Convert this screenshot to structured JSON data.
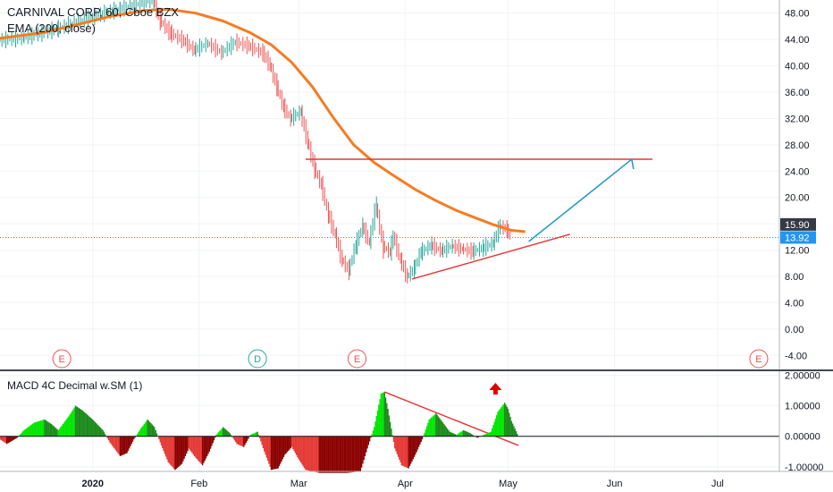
{
  "chart_data": [
    {
      "type": "candlestick",
      "title": "CARNIVAL CORP, 60, Cboe BZX",
      "indicator_label": "EMA (200, close)",
      "ylim": [
        -6,
        50
      ],
      "y_ticks": [
        "48.00",
        "44.00",
        "40.00",
        "36.00",
        "32.00",
        "28.00",
        "24.00",
        "20.00",
        "16.00",
        "12.00",
        "8.00",
        "4.00",
        "0.00",
        "-4.00"
      ],
      "x_labels": [
        "2020",
        "Feb",
        "Mar",
        "Apr",
        "May",
        "Jun",
        "Jul"
      ],
      "x_label_days": [
        0,
        31,
        60,
        91,
        121,
        152,
        182
      ],
      "xlim": [
        -27,
        200
      ],
      "price_labels": [
        {
          "value": 15.9,
          "text": "15.90",
          "color": "#363a45"
        },
        {
          "value": 13.92,
          "text": "13.92",
          "color": "#2196f3"
        }
      ],
      "event_markers": [
        {
          "day": -9,
          "text": "E",
          "color": "#ef5350"
        },
        {
          "day": 48,
          "text": "D",
          "color": "#26a69a"
        },
        {
          "day": 77,
          "text": "E",
          "color": "#ef5350"
        },
        {
          "day": 194,
          "text": "E",
          "color": "#ef5350"
        }
      ],
      "price_series": [
        {
          "day": -27,
          "v": 43.9
        },
        {
          "day": -20,
          "v": 44.2
        },
        {
          "day": -10,
          "v": 45.6
        },
        {
          "day": 0,
          "v": 47.4
        },
        {
          "day": 8,
          "v": 48.6
        },
        {
          "day": 18,
          "v": 50.0
        },
        {
          "day": 20,
          "v": 47.0
        },
        {
          "day": 23,
          "v": 45.0
        },
        {
          "day": 27,
          "v": 43.8
        },
        {
          "day": 30,
          "v": 42.4
        },
        {
          "day": 34,
          "v": 43.4
        },
        {
          "day": 38,
          "v": 42.0
        },
        {
          "day": 42,
          "v": 43.6
        },
        {
          "day": 46,
          "v": 43.0
        },
        {
          "day": 50,
          "v": 42.0
        },
        {
          "day": 52,
          "v": 40.2
        },
        {
          "day": 54,
          "v": 37.0
        },
        {
          "day": 56,
          "v": 33.8
        },
        {
          "day": 58,
          "v": 32.0
        },
        {
          "day": 61,
          "v": 33.0
        },
        {
          "day": 63,
          "v": 28.6
        },
        {
          "day": 65,
          "v": 24.5
        },
        {
          "day": 67,
          "v": 22.0
        },
        {
          "day": 69,
          "v": 17.5
        },
        {
          "day": 71,
          "v": 14.4
        },
        {
          "day": 73,
          "v": 10.6
        },
        {
          "day": 75,
          "v": 8.9
        },
        {
          "day": 77,
          "v": 12.6
        },
        {
          "day": 79,
          "v": 15.6
        },
        {
          "day": 81,
          "v": 13.2
        },
        {
          "day": 83,
          "v": 18.8
        },
        {
          "day": 85,
          "v": 12.6
        },
        {
          "day": 87,
          "v": 11.7
        },
        {
          "day": 88,
          "v": 14.2
        },
        {
          "day": 90,
          "v": 10.6
        },
        {
          "day": 92,
          "v": 8.0
        },
        {
          "day": 94,
          "v": 9.1
        },
        {
          "day": 96,
          "v": 11.7
        },
        {
          "day": 99,
          "v": 12.7
        },
        {
          "day": 102,
          "v": 11.9
        },
        {
          "day": 105,
          "v": 12.6
        },
        {
          "day": 108,
          "v": 12.2
        },
        {
          "day": 111,
          "v": 11.8
        },
        {
          "day": 114,
          "v": 12.3
        },
        {
          "day": 117,
          "v": 13.0
        },
        {
          "day": 119,
          "v": 15.6
        },
        {
          "day": 121,
          "v": 15.2
        },
        {
          "day": 122,
          "v": 13.9
        }
      ],
      "ema_series": [
        {
          "day": -27,
          "v": 44.2
        },
        {
          "day": -15,
          "v": 45.0
        },
        {
          "day": -5,
          "v": 46.2
        },
        {
          "day": 5,
          "v": 47.5
        },
        {
          "day": 15,
          "v": 48.4
        },
        {
          "day": 22,
          "v": 48.6
        },
        {
          "day": 30,
          "v": 48.0
        },
        {
          "day": 38,
          "v": 46.8
        },
        {
          "day": 46,
          "v": 45.0
        },
        {
          "day": 52,
          "v": 43.2
        },
        {
          "day": 58,
          "v": 40.5
        },
        {
          "day": 64,
          "v": 36.8
        },
        {
          "day": 70,
          "v": 32.2
        },
        {
          "day": 76,
          "v": 28.0
        },
        {
          "day": 82,
          "v": 25.3
        },
        {
          "day": 88,
          "v": 23.2
        },
        {
          "day": 94,
          "v": 21.2
        },
        {
          "day": 100,
          "v": 19.5
        },
        {
          "day": 106,
          "v": 18.0
        },
        {
          "day": 112,
          "v": 16.8
        },
        {
          "day": 117,
          "v": 15.8
        },
        {
          "day": 122,
          "v": 15.0
        },
        {
          "day": 126,
          "v": 14.8
        }
      ],
      "resistance_line": {
        "day1": 62,
        "day2": 163,
        "v": 25.8
      },
      "support_line": {
        "day1": 93,
        "v1": 7.6,
        "day2": 139,
        "v2": 14.4
      },
      "projection_line": {
        "day1": 127,
        "v1": 13.3,
        "day2": 157,
        "v2": 25.8,
        "v_end": 24.3
      }
    },
    {
      "type": "histogram",
      "title": "MACD 4C Decimal w.SM (1)",
      "ylim": [
        -1.15,
        2.1
      ],
      "y_ticks": [
        "2.00000",
        "1.00000",
        "0.00000",
        "-1.00000"
      ],
      "series": [
        {
          "day": -27,
          "v": -0.1
        },
        {
          "day": -25,
          "v": -0.25
        },
        {
          "day": -22,
          "v": -0.05
        },
        {
          "day": -20,
          "v": 0.2
        },
        {
          "day": -17,
          "v": 0.45
        },
        {
          "day": -14,
          "v": 0.55
        },
        {
          "day": -12,
          "v": 0.4
        },
        {
          "day": -10,
          "v": 0.2
        },
        {
          "day": -7,
          "v": 0.65
        },
        {
          "day": -5,
          "v": 1.0
        },
        {
          "day": -3,
          "v": 0.85
        },
        {
          "day": 0,
          "v": 0.55
        },
        {
          "day": 3,
          "v": 0.2
        },
        {
          "day": 5,
          "v": -0.2
        },
        {
          "day": 8,
          "v": -0.65
        },
        {
          "day": 10,
          "v": -0.55
        },
        {
          "day": 12,
          "v": -0.1
        },
        {
          "day": 14,
          "v": 0.25
        },
        {
          "day": 16,
          "v": 0.55
        },
        {
          "day": 18,
          "v": 0.3
        },
        {
          "day": 20,
          "v": -0.3
        },
        {
          "day": 22,
          "v": -0.85
        },
        {
          "day": 24,
          "v": -1.1
        },
        {
          "day": 26,
          "v": -0.9
        },
        {
          "day": 28,
          "v": -0.4
        },
        {
          "day": 30,
          "v": -0.7
        },
        {
          "day": 32,
          "v": -0.95
        },
        {
          "day": 34,
          "v": -0.5
        },
        {
          "day": 36,
          "v": 0.05
        },
        {
          "day": 38,
          "v": 0.3
        },
        {
          "day": 40,
          "v": 0.1
        },
        {
          "day": 42,
          "v": -0.25
        },
        {
          "day": 44,
          "v": -0.35
        },
        {
          "day": 46,
          "v": 0.05
        },
        {
          "day": 48,
          "v": 0.15
        },
        {
          "day": 50,
          "v": -0.5
        },
        {
          "day": 52,
          "v": -1.1
        },
        {
          "day": 54,
          "v": -1.05
        },
        {
          "day": 56,
          "v": -0.6
        },
        {
          "day": 58,
          "v": -0.35
        },
        {
          "day": 60,
          "v": -0.75
        },
        {
          "day": 62,
          "v": -1.1
        },
        {
          "day": 66,
          "v": -1.2
        },
        {
          "day": 70,
          "v": -1.2
        },
        {
          "day": 74,
          "v": -1.2
        },
        {
          "day": 78,
          "v": -1.15
        },
        {
          "day": 80,
          "v": -0.4
        },
        {
          "day": 82,
          "v": 0.3
        },
        {
          "day": 84,
          "v": 1.4
        },
        {
          "day": 85,
          "v": 1.45
        },
        {
          "day": 86,
          "v": 0.9
        },
        {
          "day": 88,
          "v": -0.4
        },
        {
          "day": 90,
          "v": -0.95
        },
        {
          "day": 92,
          "v": -1.05
        },
        {
          "day": 94,
          "v": -0.6
        },
        {
          "day": 96,
          "v": -0.1
        },
        {
          "day": 98,
          "v": 0.55
        },
        {
          "day": 100,
          "v": 0.75
        },
        {
          "day": 102,
          "v": 0.45
        },
        {
          "day": 104,
          "v": 0.15
        },
        {
          "day": 106,
          "v": 0.05
        },
        {
          "day": 108,
          "v": 0.2
        },
        {
          "day": 110,
          "v": 0.1
        },
        {
          "day": 112,
          "v": -0.05
        },
        {
          "day": 114,
          "v": 0.05
        },
        {
          "day": 116,
          "v": 0.15
        },
        {
          "day": 118,
          "v": 0.8
        },
        {
          "day": 120,
          "v": 1.1
        },
        {
          "day": 121,
          "v": 0.9
        },
        {
          "day": 122,
          "v": 0.5
        },
        {
          "day": 124,
          "v": 0.0
        }
      ],
      "trend_line": {
        "day1": 85,
        "v1": 1.45,
        "day2": 124,
        "v2": -0.3
      },
      "arrow_day": 122
    }
  ]
}
